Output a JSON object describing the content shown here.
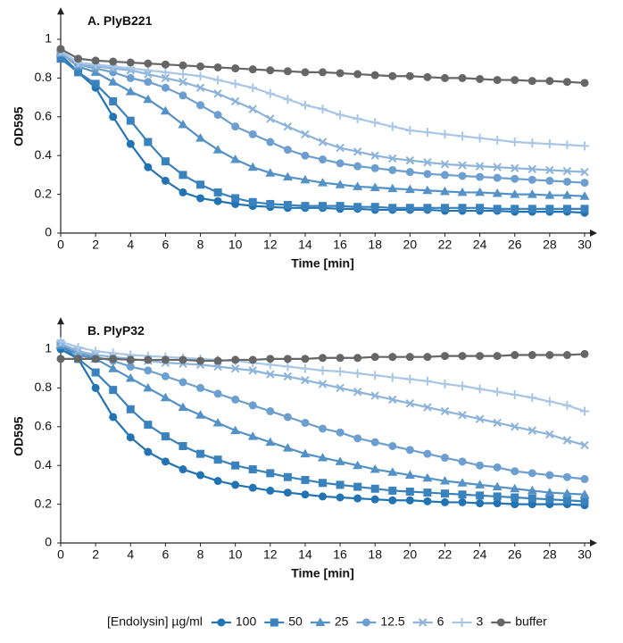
{
  "chart_data": [
    {
      "type": "line",
      "title": "A. PlyB221",
      "xlabel": "Time [min]",
      "ylabel": "OD595",
      "legend_title": "[Endolysin] µg/ml",
      "x": [
        0,
        1,
        2,
        3,
        4,
        5,
        6,
        7,
        8,
        9,
        10,
        11,
        12,
        13,
        14,
        15,
        16,
        17,
        18,
        19,
        20,
        21,
        22,
        23,
        24,
        25,
        26,
        27,
        28,
        29,
        30
      ],
      "xlim": [
        0,
        30
      ],
      "xticks": [
        0,
        2,
        4,
        6,
        8,
        10,
        12,
        14,
        16,
        18,
        20,
        22,
        24,
        26,
        28,
        30
      ],
      "ylim": [
        0,
        1.1
      ],
      "yticks": [
        0,
        0.2,
        0.4,
        0.6,
        0.8,
        1
      ],
      "series": [
        {
          "name": "100",
          "color": "#2273b3",
          "marker": "circle",
          "values": [
            0.92,
            0.83,
            0.75,
            0.6,
            0.46,
            0.34,
            0.27,
            0.21,
            0.18,
            0.165,
            0.15,
            0.14,
            0.135,
            0.13,
            0.13,
            0.13,
            0.125,
            0.125,
            0.12,
            0.12,
            0.12,
            0.12,
            0.115,
            0.115,
            0.115,
            0.115,
            0.11,
            0.11,
            0.11,
            0.11,
            0.105
          ]
        },
        {
          "name": "50",
          "color": "#3a82bd",
          "marker": "square",
          "values": [
            0.9,
            0.83,
            0.77,
            0.68,
            0.58,
            0.47,
            0.37,
            0.3,
            0.25,
            0.21,
            0.18,
            0.16,
            0.15,
            0.145,
            0.14,
            0.14,
            0.14,
            0.135,
            0.135,
            0.13,
            0.13,
            0.13,
            0.13,
            0.13,
            0.13,
            0.125,
            0.125,
            0.125,
            0.125,
            0.125,
            0.125
          ]
        },
        {
          "name": "25",
          "color": "#5391c6",
          "marker": "triangle",
          "values": [
            0.93,
            0.86,
            0.83,
            0.78,
            0.73,
            0.69,
            0.63,
            0.56,
            0.49,
            0.43,
            0.38,
            0.34,
            0.31,
            0.29,
            0.275,
            0.26,
            0.25,
            0.24,
            0.235,
            0.23,
            0.225,
            0.22,
            0.215,
            0.21,
            0.21,
            0.205,
            0.2,
            0.2,
            0.195,
            0.195,
            0.19
          ]
        },
        {
          "name": "12.5",
          "color": "#6c9fcf",
          "marker": "circle",
          "values": [
            0.93,
            0.87,
            0.85,
            0.83,
            0.8,
            0.78,
            0.75,
            0.71,
            0.66,
            0.61,
            0.55,
            0.51,
            0.47,
            0.43,
            0.4,
            0.38,
            0.36,
            0.345,
            0.335,
            0.325,
            0.315,
            0.305,
            0.3,
            0.295,
            0.29,
            0.285,
            0.28,
            0.275,
            0.27,
            0.265,
            0.26
          ]
        },
        {
          "name": "6",
          "color": "#8cb3db",
          "marker": "x",
          "values": [
            0.93,
            0.87,
            0.86,
            0.85,
            0.84,
            0.82,
            0.8,
            0.78,
            0.75,
            0.72,
            0.68,
            0.64,
            0.59,
            0.55,
            0.51,
            0.47,
            0.44,
            0.42,
            0.4,
            0.385,
            0.375,
            0.365,
            0.355,
            0.35,
            0.345,
            0.34,
            0.335,
            0.33,
            0.325,
            0.32,
            0.315
          ]
        },
        {
          "name": "3",
          "color": "#a9c6e6",
          "marker": "plus",
          "values": [
            0.94,
            0.88,
            0.87,
            0.86,
            0.85,
            0.84,
            0.83,
            0.82,
            0.81,
            0.79,
            0.77,
            0.75,
            0.72,
            0.69,
            0.66,
            0.64,
            0.61,
            0.59,
            0.57,
            0.55,
            0.53,
            0.52,
            0.51,
            0.5,
            0.49,
            0.48,
            0.47,
            0.465,
            0.46,
            0.455,
            0.45
          ]
        },
        {
          "name": "buffer",
          "color": "#666666",
          "marker": "circle",
          "values": [
            0.95,
            0.9,
            0.89,
            0.885,
            0.88,
            0.875,
            0.87,
            0.865,
            0.86,
            0.855,
            0.85,
            0.845,
            0.84,
            0.835,
            0.83,
            0.83,
            0.825,
            0.82,
            0.815,
            0.81,
            0.81,
            0.805,
            0.8,
            0.8,
            0.795,
            0.79,
            0.79,
            0.785,
            0.785,
            0.78,
            0.775
          ]
        }
      ]
    },
    {
      "type": "line",
      "title": "B. PlyP32",
      "xlabel": "Time [min]",
      "ylabel": "OD595",
      "x": [
        0,
        1,
        2,
        3,
        4,
        5,
        6,
        7,
        8,
        9,
        10,
        11,
        12,
        13,
        14,
        15,
        16,
        17,
        18,
        19,
        20,
        21,
        22,
        23,
        24,
        25,
        26,
        27,
        28,
        29,
        30
      ],
      "xlim": [
        0,
        30
      ],
      "xticks": [
        0,
        2,
        4,
        6,
        8,
        10,
        12,
        14,
        16,
        18,
        20,
        22,
        24,
        26,
        28,
        30
      ],
      "ylim": [
        0,
        1.1
      ],
      "yticks": [
        0,
        0.2,
        0.4,
        0.6,
        0.8,
        1
      ],
      "series": [
        {
          "color": "#2273b3",
          "marker": "circle",
          "values": [
            1.0,
            0.95,
            0.8,
            0.65,
            0.545,
            0.47,
            0.42,
            0.38,
            0.35,
            0.32,
            0.3,
            0.285,
            0.27,
            0.26,
            0.25,
            0.24,
            0.235,
            0.23,
            0.225,
            0.22,
            0.22,
            0.215,
            0.21,
            0.21,
            0.205,
            0.205,
            0.2,
            0.2,
            0.2,
            0.2,
            0.195
          ]
        },
        {
          "color": "#3a82bd",
          "marker": "square",
          "values": [
            1.02,
            0.95,
            0.88,
            0.79,
            0.69,
            0.61,
            0.55,
            0.5,
            0.46,
            0.43,
            0.4,
            0.38,
            0.36,
            0.34,
            0.325,
            0.31,
            0.3,
            0.29,
            0.28,
            0.27,
            0.265,
            0.26,
            0.255,
            0.25,
            0.245,
            0.24,
            0.235,
            0.23,
            0.225,
            0.22,
            0.215
          ]
        },
        {
          "color": "#5391c6",
          "marker": "triangle",
          "values": [
            1.02,
            0.97,
            0.95,
            0.9,
            0.85,
            0.8,
            0.75,
            0.7,
            0.66,
            0.62,
            0.58,
            0.55,
            0.52,
            0.49,
            0.46,
            0.44,
            0.42,
            0.4,
            0.38,
            0.365,
            0.35,
            0.335,
            0.32,
            0.31,
            0.3,
            0.29,
            0.28,
            0.27,
            0.26,
            0.255,
            0.25
          ]
        },
        {
          "color": "#6c9fcf",
          "marker": "circle",
          "values": [
            1.03,
            0.98,
            0.96,
            0.94,
            0.91,
            0.89,
            0.86,
            0.83,
            0.8,
            0.77,
            0.74,
            0.71,
            0.68,
            0.65,
            0.62,
            0.59,
            0.57,
            0.54,
            0.52,
            0.5,
            0.48,
            0.46,
            0.44,
            0.42,
            0.4,
            0.39,
            0.37,
            0.36,
            0.35,
            0.34,
            0.33
          ]
        },
        {
          "color": "#8cb3db",
          "marker": "x",
          "values": [
            1.03,
            0.99,
            0.97,
            0.96,
            0.95,
            0.94,
            0.93,
            0.925,
            0.92,
            0.91,
            0.9,
            0.89,
            0.87,
            0.86,
            0.84,
            0.82,
            0.8,
            0.78,
            0.76,
            0.74,
            0.72,
            0.7,
            0.68,
            0.66,
            0.64,
            0.62,
            0.6,
            0.58,
            0.56,
            0.53,
            0.505
          ]
        },
        {
          "color": "#a9c6e6",
          "marker": "plus",
          "values": [
            1.04,
            1.01,
            0.99,
            0.98,
            0.97,
            0.965,
            0.96,
            0.955,
            0.95,
            0.945,
            0.94,
            0.93,
            0.92,
            0.91,
            0.9,
            0.89,
            0.885,
            0.875,
            0.865,
            0.855,
            0.845,
            0.835,
            0.82,
            0.81,
            0.795,
            0.78,
            0.765,
            0.75,
            0.73,
            0.71,
            0.68
          ]
        },
        {
          "color": "#666666",
          "marker": "circle",
          "values": [
            0.95,
            0.95,
            0.95,
            0.95,
            0.945,
            0.945,
            0.945,
            0.945,
            0.94,
            0.94,
            0.945,
            0.945,
            0.95,
            0.95,
            0.95,
            0.955,
            0.955,
            0.955,
            0.96,
            0.96,
            0.96,
            0.96,
            0.965,
            0.965,
            0.965,
            0.965,
            0.97,
            0.97,
            0.97,
            0.97,
            0.975
          ]
        }
      ]
    }
  ]
}
